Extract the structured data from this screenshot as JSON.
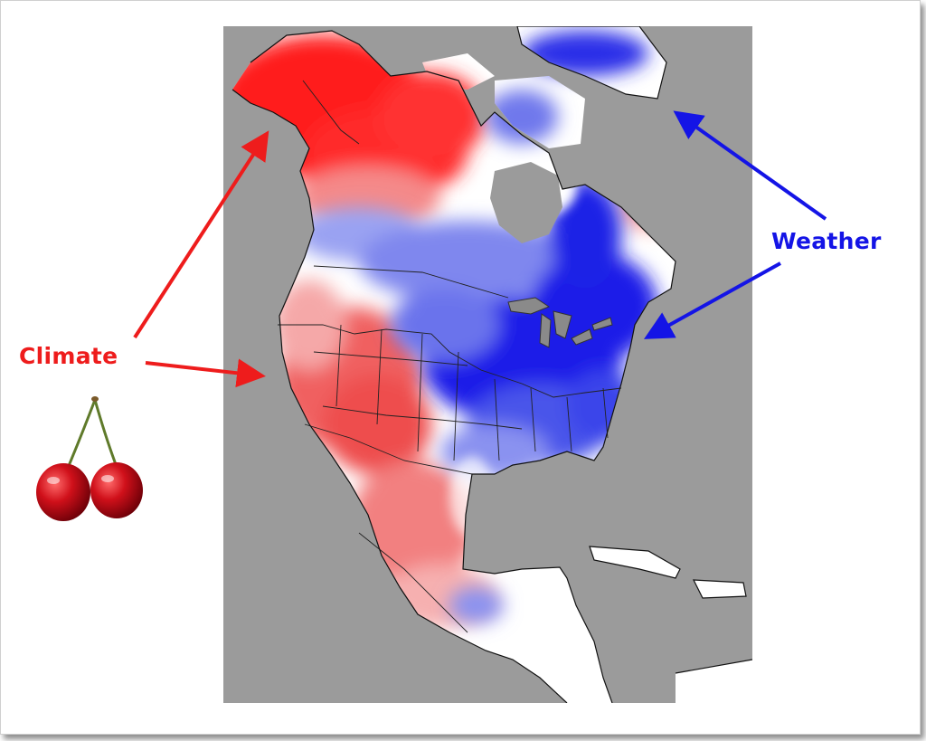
{
  "labels": {
    "climate": "Climate",
    "weather": "Weather"
  },
  "colors": {
    "climate_red": "#ee1c1c",
    "weather_blue": "#1414e6",
    "ocean_gray": "#9b9b9b",
    "warm_strong": "#ff1a1a",
    "warm_mid": "#f26a6a",
    "warm_light": "#f7b3b3",
    "neutral": "#ffffff",
    "cool_light": "#b7bdf5",
    "cool_mid": "#6f78ec",
    "cool_strong": "#1a1ae8"
  },
  "icons": {
    "cherries": "cherries-icon",
    "arrows": "arrow-icon"
  }
}
